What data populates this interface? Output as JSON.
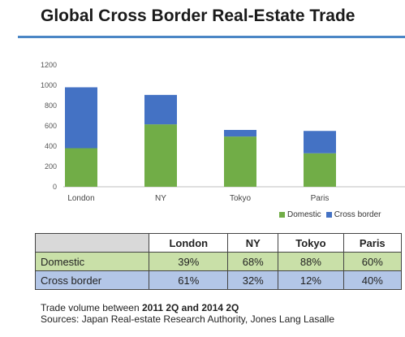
{
  "title": "Global Cross Border Real-Estate Trade",
  "chart_data": {
    "type": "bar",
    "stacked": true,
    "categories": [
      "London",
      "NY",
      "Tokyo",
      "Paris"
    ],
    "series": [
      {
        "name": "Domestic",
        "color": "#71ad47",
        "values": [
          380,
          615,
          495,
          330
        ]
      },
      {
        "name": "Cross border",
        "color": "#4472c4",
        "values": [
          600,
          290,
          65,
          220
        ]
      }
    ],
    "ylim": [
      0,
      1200
    ],
    "yticks": [
      0,
      200,
      400,
      600,
      800,
      1000,
      1200
    ],
    "grid": false,
    "legend_position": "bottom-right"
  },
  "table": {
    "headers": [
      "",
      "London",
      "NY",
      "Tokyo",
      "Paris"
    ],
    "rows": [
      {
        "label": "Domestic",
        "values": [
          "39%",
          "68%",
          "88%",
          "60%"
        ]
      },
      {
        "label": "Cross border",
        "values": [
          "61%",
          "32%",
          "12%",
          "40%"
        ]
      }
    ]
  },
  "note": {
    "line1_prefix": "Trade volume between",
    "line1_range": "2011 2Q and 2014 2Q",
    "line2": "Sources: Japan Real-estate Research Authority, Jones Lang Lasalle"
  }
}
